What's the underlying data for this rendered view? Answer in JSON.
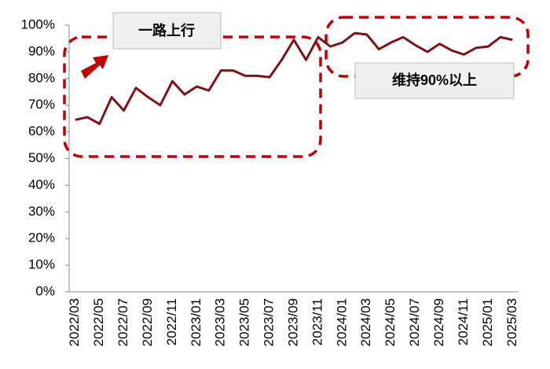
{
  "chart_data": {
    "type": "line",
    "categories": [
      "2022/03",
      null,
      "2022/05",
      null,
      "2022/07",
      null,
      "2022/09",
      null,
      "2022/11",
      null,
      "2023/01",
      null,
      "2023/03",
      null,
      "2023/05",
      null,
      "2023/07",
      null,
      "2023/09",
      null,
      "2023/11",
      null,
      "2024/01",
      null,
      "2024/03",
      null,
      "2024/05",
      null,
      "2024/07",
      null,
      "2024/09",
      null,
      "2024/11",
      null,
      "2025/01",
      null,
      "2025/03"
    ],
    "series": [
      {
        "color": "#7b1416",
        "values": [
          64.5,
          65.5,
          63,
          73,
          68,
          76.5,
          73,
          70,
          79,
          74,
          77,
          75.5,
          83,
          83,
          81,
          81,
          80.5,
          87,
          94.5,
          87,
          95.5,
          92,
          93.5,
          97,
          96.5,
          91,
          93.5,
          95.5,
          92.5,
          90,
          93,
          90.5,
          89,
          91.5,
          92,
          95.5,
          94.5
        ]
      }
    ],
    "ylim": [
      0,
      100
    ],
    "yticks": [
      {
        "value": 0,
        "label": "0%"
      },
      {
        "value": 10,
        "label": "10%"
      },
      {
        "value": 20,
        "label": "20%"
      },
      {
        "value": 30,
        "label": "30%"
      },
      {
        "value": 40,
        "label": "40%"
      },
      {
        "value": 50,
        "label": "50%"
      },
      {
        "value": 60,
        "label": "60%"
      },
      {
        "value": 70,
        "label": "70%"
      },
      {
        "value": 80,
        "label": "80%"
      },
      {
        "value": 90,
        "label": "90%"
      },
      {
        "value": 100,
        "label": "100%"
      }
    ],
    "annotations": [
      "一路上行",
      "维持90%以上"
    ]
  }
}
